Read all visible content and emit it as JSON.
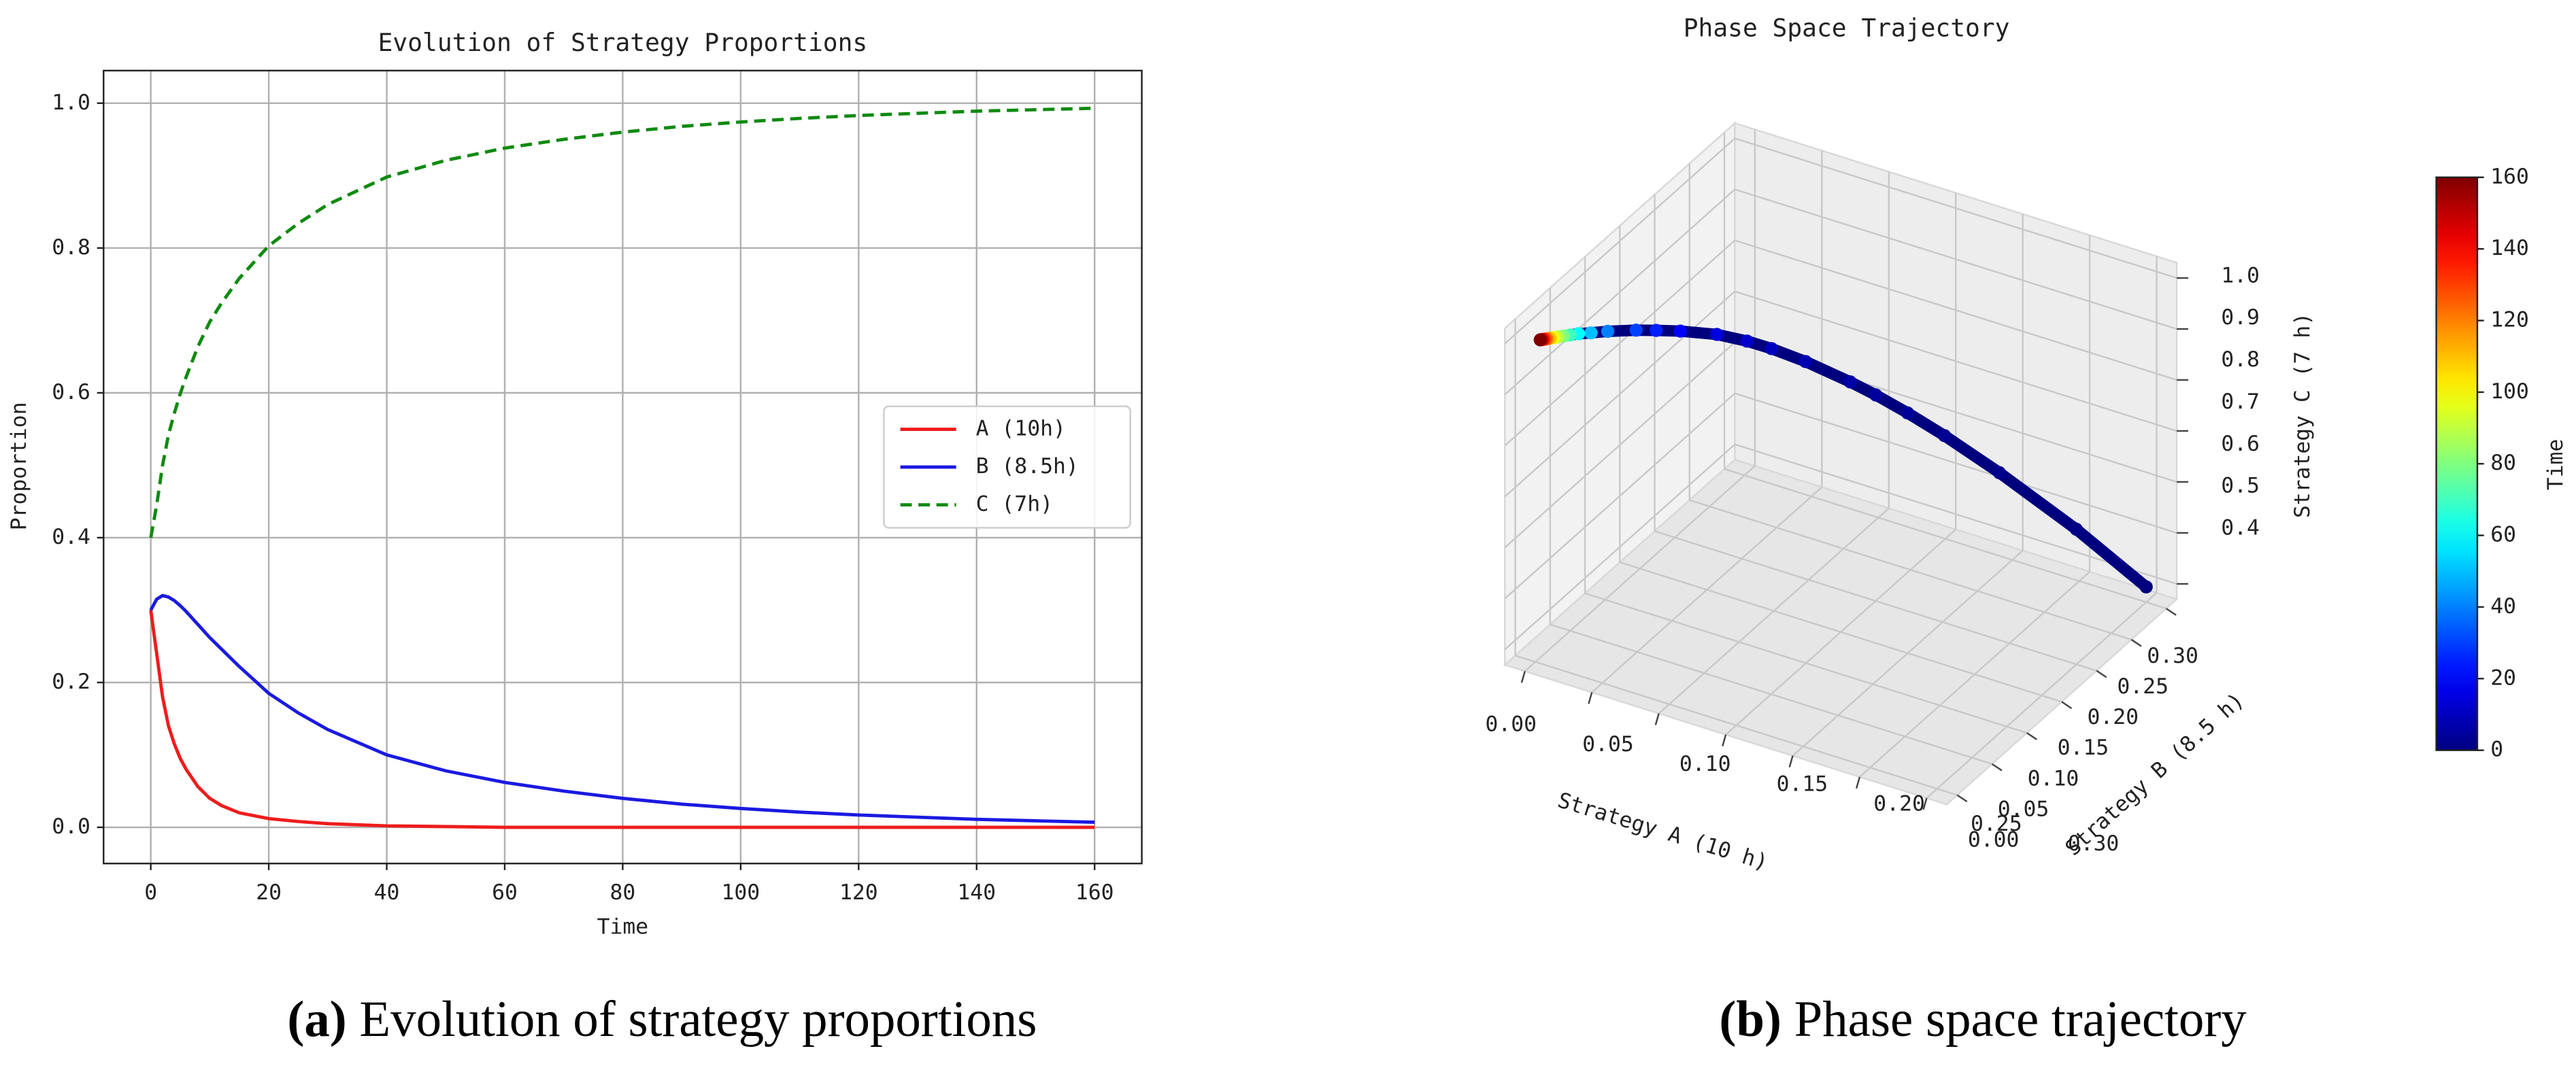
{
  "chart_data": [
    {
      "type": "line",
      "title": "Evolution of Strategy Proportions",
      "xlabel": "Time",
      "ylabel": "Proportion",
      "x": [
        0,
        1,
        2,
        3,
        4,
        5,
        6,
        8,
        10,
        12,
        15,
        20,
        25,
        30,
        40,
        50,
        60,
        70,
        80,
        90,
        100,
        110,
        120,
        130,
        140,
        150,
        160
      ],
      "series": [
        {
          "name": "A (10h)",
          "color": "#ee1c1c",
          "linestyle": "solid",
          "values": [
            0.3,
            0.24,
            0.18,
            0.14,
            0.115,
            0.095,
            0.08,
            0.056,
            0.04,
            0.03,
            0.02,
            0.012,
            0.008,
            0.005,
            0.002,
            0.001,
            0,
            0,
            0,
            0,
            0,
            0,
            0,
            0,
            0,
            0,
            0
          ]
        },
        {
          "name": "B (8.5h)",
          "color": "#1a1ae0",
          "linestyle": "solid",
          "values": [
            0.3,
            0.315,
            0.32,
            0.318,
            0.313,
            0.306,
            0.298,
            0.28,
            0.262,
            0.246,
            0.222,
            0.185,
            0.158,
            0.135,
            0.1,
            0.078,
            0.062,
            0.05,
            0.04,
            0.032,
            0.026,
            0.021,
            0.017,
            0.014,
            0.011,
            0.009,
            0.007
          ]
        },
        {
          "name": "C (7h)",
          "color": "#108a10",
          "linestyle": "dashed",
          "values": [
            0.4,
            0.445,
            0.5,
            0.542,
            0.572,
            0.599,
            0.622,
            0.664,
            0.698,
            0.724,
            0.758,
            0.803,
            0.834,
            0.86,
            0.898,
            0.921,
            0.938,
            0.95,
            0.96,
            0.968,
            0.974,
            0.979,
            0.983,
            0.986,
            0.989,
            0.991,
            0.993
          ]
        }
      ],
      "xlim": [
        -8,
        168
      ],
      "xticks": [
        0,
        20,
        40,
        60,
        80,
        100,
        120,
        140,
        160
      ],
      "ylim": [
        -0.05,
        1.045
      ],
      "yticks": [
        {
          "value": 0,
          "label": "0.0"
        },
        0.2,
        0.4,
        0.6,
        0.8,
        {
          "value": 1,
          "label": "1.0"
        }
      ],
      "grid": true,
      "legend": "center right"
    },
    {
      "type": "scatter3d",
      "title": "Phase Space Trajectory",
      "xlabel": "Strategy A (10 h)",
      "ylabel": "Strategy B (8.5 h)",
      "zlabel": "Strategy C (7 h)",
      "xlim": [
        -0.015,
        0.315
      ],
      "ylim": [
        -0.015,
        0.315
      ],
      "zlim": [
        0.37,
        1.03
      ],
      "xticks": [
        {
          "value": 0,
          "label": "0.00"
        },
        0.05,
        {
          "value": 0.1,
          "label": "0.10"
        },
        0.15,
        {
          "value": 0.2,
          "label": "0.20"
        },
        0.25,
        {
          "value": 0.3,
          "label": "0.30"
        }
      ],
      "yticks": [
        {
          "value": 0,
          "label": "0.00"
        },
        0.05,
        {
          "value": 0.1,
          "label": "0.10"
        },
        0.15,
        {
          "value": 0.2,
          "label": "0.20"
        },
        0.25,
        {
          "value": 0.3,
          "label": "0.30"
        }
      ],
      "zticks": [
        0.4,
        0.5,
        0.6,
        0.7,
        0.8,
        0.9,
        {
          "value": 1,
          "label": "1.0"
        }
      ],
      "line_color": "#00007f",
      "colorbar": {
        "label": "Time",
        "cmap": "jet",
        "lim": [
          0,
          160
        ],
        "ticks": [
          0,
          20,
          40,
          60,
          80,
          100,
          120,
          140,
          160
        ]
      }
    }
  ],
  "captions": [
    {
      "label": "(a)",
      "text": "Evolution of strategy proportions"
    },
    {
      "label": "(b)",
      "text": "Phase space trajectory"
    }
  ]
}
